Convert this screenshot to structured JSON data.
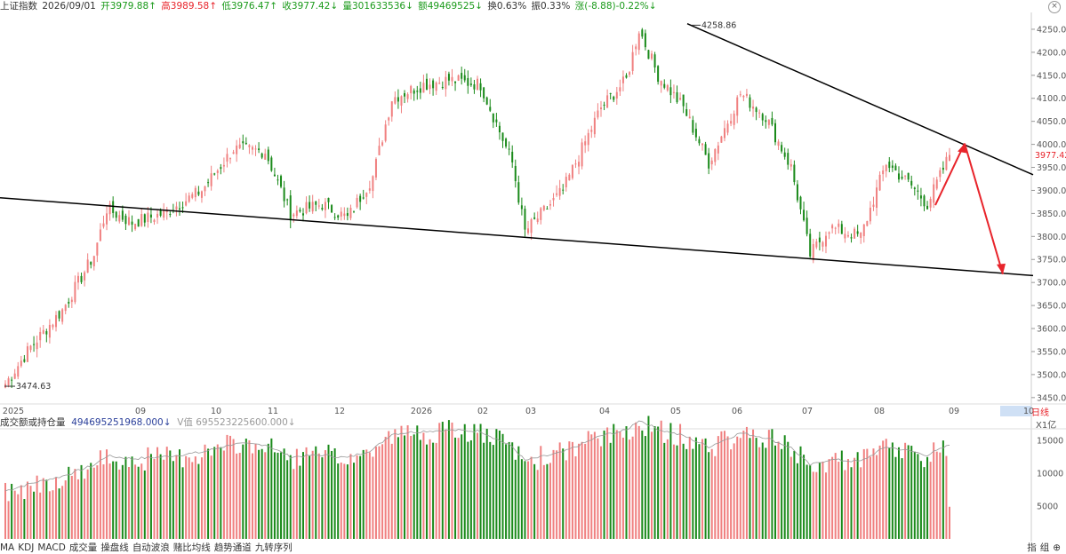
{
  "header": {
    "name": "上证指数",
    "date": "2026/09/01",
    "open": "开3979.88↑",
    "high": "高3989.58↑",
    "low": "低3976.47↑",
    "close": "收3977.42↓",
    "volume": "量301633536↓",
    "amount": "额49469525↓",
    "turnover": "换0.63%",
    "amplitude": "振0.33%",
    "change": "涨(-8.88)-0.22%↓"
  },
  "price_labels": {
    "high_mark": "4258.86",
    "low_mark": "3474.63",
    "current": "3977.42",
    "period": "日线"
  },
  "volume_panel": {
    "title": "成交额或持仓量",
    "value": "494695251968.000↓",
    "ma": "V值 695523225600.000↓",
    "unit": "X1亿"
  },
  "bottom_bar": {
    "indicators": [
      "MA",
      "KDJ",
      "MACD",
      "成交量",
      "操盘线",
      "自动波浪",
      "赌比均线",
      "趋势通道",
      "九转序列"
    ],
    "right": [
      "指",
      "组",
      "⊕"
    ]
  },
  "colors": {
    "up": "#f08080",
    "down": "#1a8a1a",
    "trend": "#000000",
    "arrow": "#e8242b"
  },
  "chart_data": {
    "type": "candlestick",
    "y_ticks": [
      "4250.00",
      "4200.00",
      "4150.00",
      "4100.00",
      "4050.00",
      "4000.00",
      "3950.00",
      "3900.00",
      "3850.00",
      "3800.00",
      "3750.00",
      "3700.00",
      "3650.00",
      "3600.00",
      "3550.00",
      "3500.00",
      "3450.00"
    ],
    "x_ticks": [
      "2025",
      "09",
      "10",
      "11",
      "12",
      "2026",
      "02",
      "03",
      "04",
      "05",
      "06",
      "07",
      "08",
      "09",
      "10"
    ],
    "vol_ticks": [
      "15000",
      "10000",
      "5000"
    ],
    "ylim": [
      3440,
      4275
    ],
    "vol_ylim": [
      0,
      16500
    ],
    "anchors": [
      {
        "i": 0,
        "c": 3480
      },
      {
        "i": 8,
        "c": 3560
      },
      {
        "i": 18,
        "c": 3640
      },
      {
        "i": 28,
        "c": 3760
      },
      {
        "i": 32,
        "c": 3860
      },
      {
        "i": 40,
        "c": 3830
      },
      {
        "i": 50,
        "c": 3850
      },
      {
        "i": 62,
        "c": 3900
      },
      {
        "i": 72,
        "c": 3990
      },
      {
        "i": 82,
        "c": 3985
      },
      {
        "i": 90,
        "c": 3850
      },
      {
        "i": 100,
        "c": 3870
      },
      {
        "i": 108,
        "c": 3840
      },
      {
        "i": 116,
        "c": 3930
      },
      {
        "i": 122,
        "c": 4100
      },
      {
        "i": 132,
        "c": 4130
      },
      {
        "i": 140,
        "c": 4140
      },
      {
        "i": 150,
        "c": 4130
      },
      {
        "i": 160,
        "c": 3960
      },
      {
        "i": 164,
        "c": 3810
      },
      {
        "i": 176,
        "c": 3900
      },
      {
        "i": 188,
        "c": 4080
      },
      {
        "i": 196,
        "c": 4140
      },
      {
        "i": 200,
        "c": 4250
      },
      {
        "i": 206,
        "c": 4150
      },
      {
        "i": 214,
        "c": 4080
      },
      {
        "i": 222,
        "c": 3960
      },
      {
        "i": 232,
        "c": 4110
      },
      {
        "i": 240,
        "c": 4060
      },
      {
        "i": 248,
        "c": 3950
      },
      {
        "i": 254,
        "c": 3760
      },
      {
        "i": 260,
        "c": 3820
      },
      {
        "i": 270,
        "c": 3800
      },
      {
        "i": 278,
        "c": 3960
      },
      {
        "i": 286,
        "c": 3910
      },
      {
        "i": 291,
        "c": 3870
      },
      {
        "i": 298,
        "c": 3977
      }
    ]
  }
}
